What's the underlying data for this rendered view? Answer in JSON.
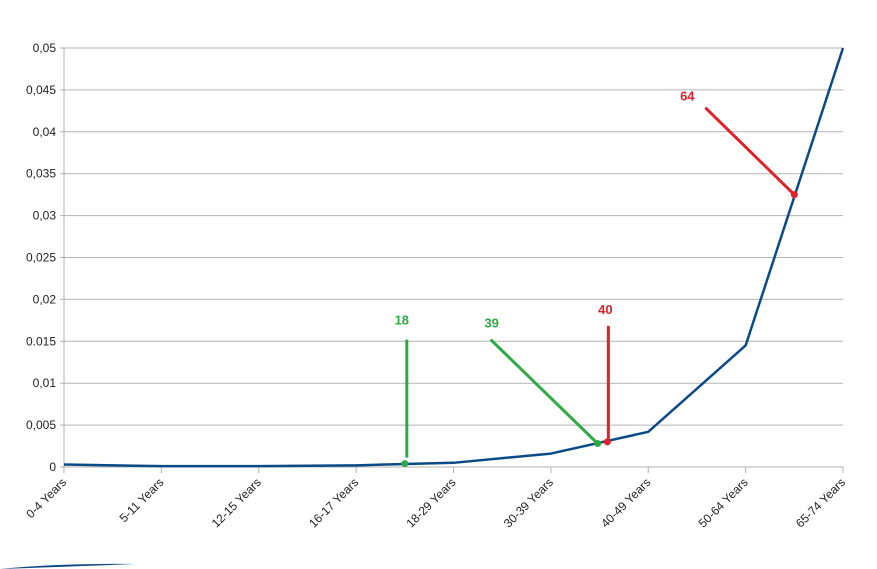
{
  "chart_data": {
    "type": "line",
    "categories": [
      "0-4 Years",
      "5-11 Years",
      "12-15 Years",
      "16-17 Years",
      "18-29 Years",
      "30-39 Years",
      "40-49 Years",
      "50-64 Years",
      "65-74 Years"
    ],
    "series": [
      {
        "color": "#0b4a86",
        "values": [
          0.0003,
          0.0001,
          0.0001,
          0.0002,
          0.0005,
          0.0016,
          0.0042,
          0.0145,
          0.05
        ]
      }
    ],
    "ylim": [
      0,
      0.05
    ],
    "yticks": [
      0,
      {
        "value": 0.005,
        "label": "0,005"
      },
      {
        "value": 0.01,
        "label": "0,01"
      },
      0.015,
      {
        "value": 0.02,
        "label": "0,02"
      },
      {
        "value": 0.025,
        "label": "0,025"
      },
      {
        "value": 0.03,
        "label": "0,03"
      },
      {
        "value": 0.035,
        "label": "0,035"
      },
      {
        "value": 0.04,
        "label": "0,04"
      },
      {
        "value": 0.045,
        "label": "0,045"
      },
      {
        "value": 0.05,
        "label": "0,05"
      }
    ],
    "grid": true,
    "annotations": [
      {
        "label": "18",
        "color": "#2eaa45",
        "x": 3.5,
        "y": 0.0004
      },
      {
        "label": "39",
        "color": "#2eaa45",
        "x": 5.48,
        "y": 0.0028
      },
      {
        "label": "40",
        "color": "#e0202a",
        "x": 5.58,
        "y": 0.003
      },
      {
        "label": "64",
        "color": "#e0202a",
        "x": 7.5,
        "y": 0.0325
      }
    ]
  }
}
